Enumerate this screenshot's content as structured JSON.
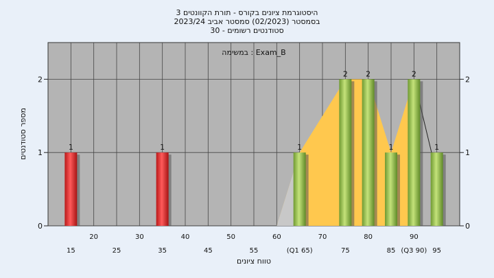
{
  "title_lines": [
    "היסטוגרמת ציונים בקורס - תורת הקוונטים 3",
    "בסמסטר  (02/2023)  סמסטר אביב 2023/24",
    "סטודנטים רשומים - 30"
  ],
  "annotation": "במשימה : Exam_B",
  "chart_data": {
    "type": "bar",
    "title": "היסטוגרמת ציונים בקורס - תורת הקוונטים 3",
    "xlabel": "טווח ציונים",
    "ylabel": "מספר סטודנטים",
    "xlim": [
      10,
      100
    ],
    "ylim": [
      0,
      2.5
    ],
    "y_ticks": [
      0,
      1,
      2
    ],
    "x_ticks_upper": [
      20,
      30,
      40,
      50,
      60,
      70,
      80,
      90
    ],
    "x_ticks_lower": [
      "15",
      "25",
      "35",
      "45",
      "55",
      "(Q1 65)",
      "75",
      "85",
      "(Q3 90)",
      "95"
    ],
    "x_ticks_lower_pos": [
      15,
      25,
      35,
      45,
      55,
      65,
      75,
      85,
      90,
      95
    ],
    "grid": true,
    "bars": [
      {
        "x": 15,
        "value": 1,
        "label": "1",
        "color": "red"
      },
      {
        "x": 35,
        "value": 1,
        "label": "1",
        "color": "red"
      },
      {
        "x": 65,
        "value": 1,
        "label": "1",
        "color": "green"
      },
      {
        "x": 75,
        "value": 2,
        "label": "2",
        "color": "green"
      },
      {
        "x": 80,
        "value": 2,
        "label": "2",
        "color": "green"
      },
      {
        "x": 85,
        "value": 1,
        "label": "1",
        "color": "green"
      },
      {
        "x": 90,
        "value": 2,
        "label": "2",
        "color": "green"
      },
      {
        "x": 95,
        "value": 1,
        "label": "1",
        "color": "green"
      }
    ],
    "iqr_band": {
      "x_start": 65,
      "x_end": 90,
      "color": "#ffc84e"
    },
    "colors": {
      "plot_bg": "#b4b4b4",
      "page_bg": "#e9f0f9",
      "red": "#e03030",
      "green": "#98c050",
      "band": "#ffc84e"
    }
  }
}
